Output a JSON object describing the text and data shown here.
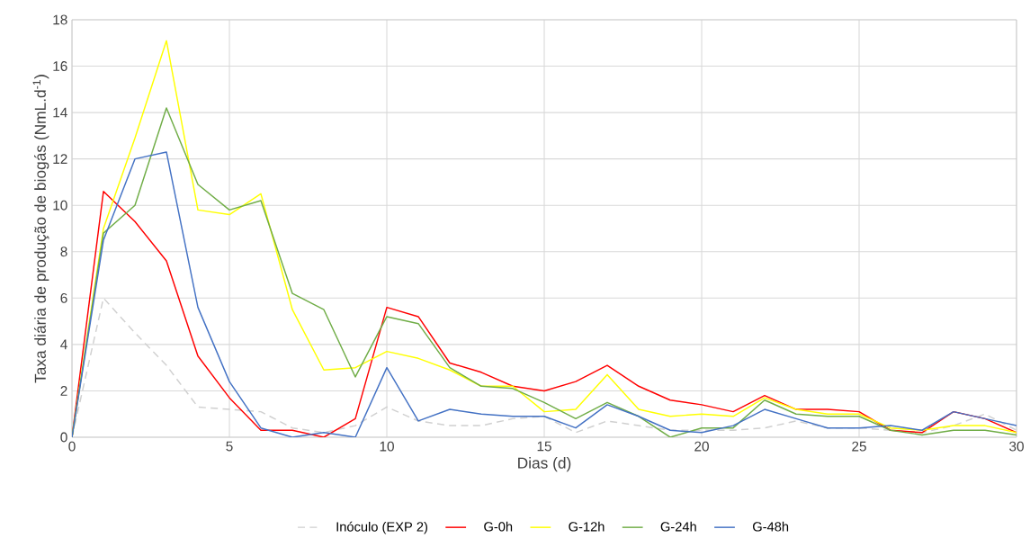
{
  "chart_data": {
    "type": "line",
    "xlabel": "Dias (d)",
    "ylabel": "Taxa diária de produção de biogás (NmL.d$^{-1}$)",
    "x": [
      0,
      1,
      2,
      3,
      4,
      5,
      6,
      7,
      8,
      9,
      10,
      11,
      12,
      13,
      14,
      15,
      16,
      17,
      18,
      19,
      20,
      21,
      22,
      23,
      24,
      25,
      26,
      27,
      28,
      29,
      30
    ],
    "series": [
      {
        "name": "Inóculo (EXP 2)",
        "color": "#d0d0d0",
        "line_style": "dashed",
        "values": [
          0,
          6.0,
          4.5,
          3.1,
          1.3,
          1.2,
          1.1,
          0.4,
          0.2,
          0.5,
          1.3,
          0.7,
          0.5,
          0.5,
          0.8,
          0.9,
          0.2,
          0.7,
          0.5,
          0.3,
          0.3,
          0.3,
          0.4,
          0.7,
          0.4,
          0.4,
          0.3,
          0.2,
          0.5,
          1.0,
          0.3
        ]
      },
      {
        "name": "G-0h",
        "color": "#ff0000",
        "values": [
          0,
          10.6,
          9.3,
          7.6,
          3.5,
          1.7,
          0.3,
          0.3,
          0.0,
          0.8,
          5.6,
          5.2,
          3.2,
          2.8,
          2.2,
          2.0,
          2.4,
          3.1,
          2.2,
          1.6,
          1.4,
          1.1,
          1.8,
          1.2,
          1.2,
          1.1,
          0.3,
          0.2,
          1.1,
          0.8,
          0.2
        ]
      },
      {
        "name": "G-12h",
        "color": "#ffff00",
        "values": [
          0,
          9.0,
          12.9,
          17.1,
          9.8,
          9.6,
          10.5,
          5.5,
          2.9,
          3.0,
          3.7,
          3.4,
          2.9,
          2.2,
          2.2,
          1.1,
          1.2,
          2.7,
          1.2,
          0.9,
          1.0,
          0.9,
          1.7,
          1.2,
          1.0,
          1.0,
          0.4,
          0.3,
          0.5,
          0.5,
          0.2
        ]
      },
      {
        "name": "G-24h",
        "color": "#70ad47",
        "values": [
          0,
          8.8,
          10.0,
          14.2,
          10.9,
          9.8,
          10.2,
          6.2,
          5.5,
          2.6,
          5.2,
          4.9,
          3.0,
          2.2,
          2.1,
          1.5,
          0.8,
          1.5,
          0.9,
          0.0,
          0.4,
          0.4,
          1.6,
          1.0,
          0.9,
          0.9,
          0.3,
          0.1,
          0.3,
          0.3,
          0.1
        ]
      },
      {
        "name": "G-48h",
        "color": "#4472c4",
        "values": [
          0,
          8.5,
          12.0,
          12.3,
          5.6,
          2.4,
          0.4,
          0.0,
          0.2,
          0.0,
          3.0,
          0.7,
          1.2,
          1.0,
          0.9,
          0.9,
          0.4,
          1.4,
          0.9,
          0.3,
          0.2,
          0.5,
          1.2,
          0.8,
          0.4,
          0.4,
          0.5,
          0.3,
          1.1,
          0.8,
          0.5
        ]
      }
    ],
    "xlim": [
      0,
      30
    ],
    "xticks": [
      0,
      5,
      10,
      15,
      20,
      25,
      30
    ],
    "ylim": [
      0,
      18
    ],
    "yticks": [
      0,
      2,
      4,
      6,
      8,
      10,
      12,
      14,
      16,
      18
    ],
    "grid": true,
    "legend": "bottom",
    "marker": "none",
    "line_style": "solid"
  }
}
